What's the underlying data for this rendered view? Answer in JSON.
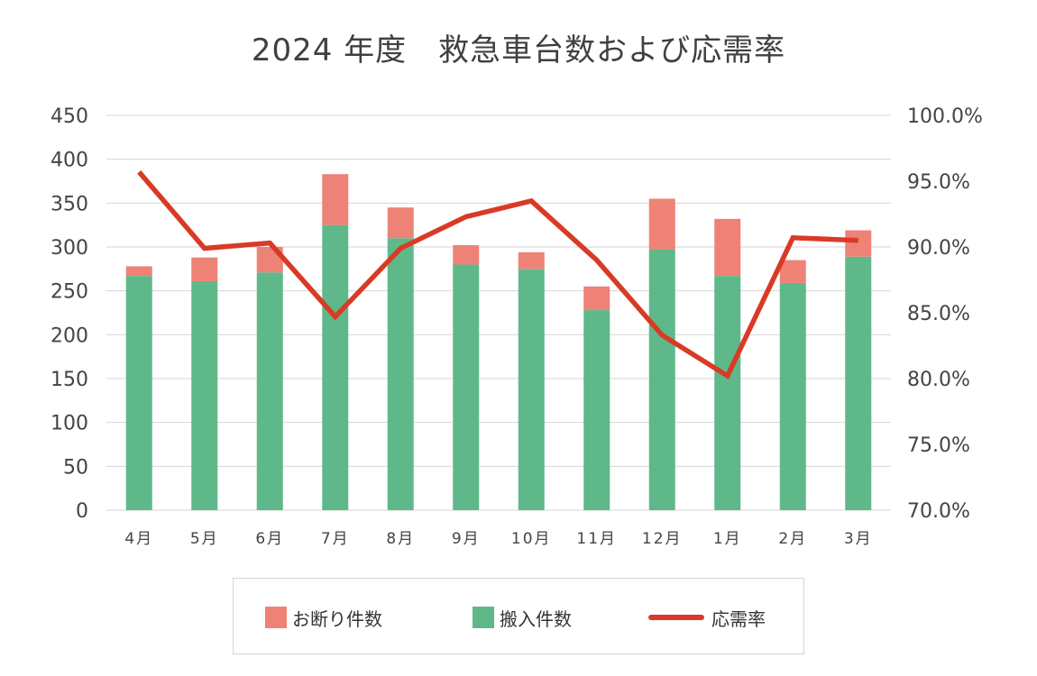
{
  "chart_data": {
    "type": "bar",
    "title": "2024 年度　救急車台数および応需率",
    "categories": [
      "4月",
      "5月",
      "6月",
      "7月",
      "8月",
      "9月",
      "10月",
      "11月",
      "12月",
      "1月",
      "2月",
      "3月"
    ],
    "series": [
      {
        "name": "搬入件数",
        "type": "bar",
        "stack": "total",
        "color": "#5fb88a",
        "axis": "left",
        "values": [
          267,
          261,
          271,
          325,
          310,
          280,
          275,
          228,
          297,
          267,
          259,
          289
        ]
      },
      {
        "name": "お断り件数",
        "type": "bar",
        "stack": "total",
        "color": "#ee8276",
        "axis": "left",
        "values": [
          11,
          27,
          29,
          58,
          35,
          22,
          19,
          27,
          58,
          65,
          26,
          30
        ]
      },
      {
        "name": "応需率",
        "type": "line",
        "color": "#d93a26",
        "axis": "right",
        "values": [
          95.7,
          89.9,
          90.3,
          84.7,
          89.9,
          92.3,
          93.5,
          89.0,
          83.3,
          80.2,
          90.7,
          90.5
        ]
      }
    ],
    "left_axis": {
      "min": 0,
      "max": 450,
      "step": 50,
      "ticks": [
        "0",
        "50",
        "100",
        "150",
        "200",
        "250",
        "300",
        "350",
        "400",
        "450"
      ]
    },
    "right_axis": {
      "min": 70,
      "max": 100,
      "ticks": [
        "70.0%",
        "75.0%",
        "80.0%",
        "85.0%",
        "90.0%",
        "95.0%",
        "100.0%"
      ]
    },
    "legend": {
      "position": "bottom",
      "items": [
        "お断り件数",
        "搬入件数",
        "応需率"
      ]
    },
    "grid": true
  }
}
